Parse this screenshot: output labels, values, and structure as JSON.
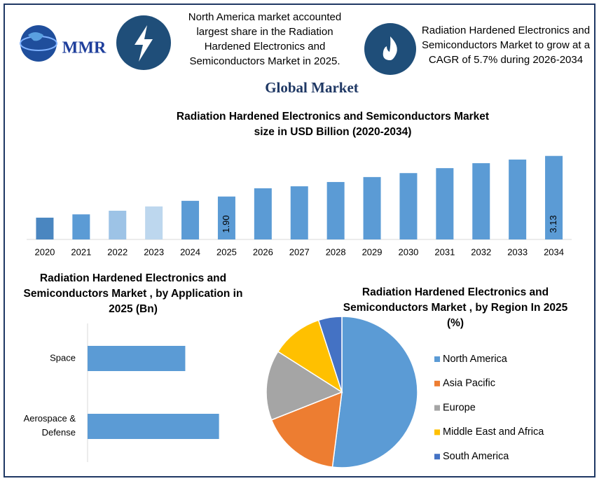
{
  "header": {
    "note_left": "North America market accounted largest share in the Radiation Hardened Electronics and Semiconductors   Market in 2025.",
    "note_right": "Radiation Hardened Electronics and Semiconductors Market to grow at a CAGR of 5.7% during 2026-2034",
    "logo": "MMR",
    "title": "Global Market"
  },
  "chart_data": [
    {
      "type": "bar",
      "title": "Radiation Hardened Electronics and Semiconductors Market size in USD Billion (2020-2034)",
      "categories": [
        "2020",
        "2021",
        "2022",
        "2023",
        "2024",
        "2025",
        "2026",
        "2027",
        "2028",
        "2029",
        "2030",
        "2031",
        "2032",
        "2033",
        "2034"
      ],
      "values": [
        1.26,
        1.36,
        1.47,
        1.6,
        1.77,
        1.9,
        2.15,
        2.21,
        2.34,
        2.49,
        2.61,
        2.76,
        2.91,
        3.02,
        3.13
      ],
      "value_labels": [
        null,
        null,
        null,
        null,
        null,
        "1.90",
        null,
        null,
        null,
        null,
        null,
        null,
        null,
        null,
        "3.13"
      ],
      "colors": [
        "#4a86c0",
        "#5b9bd5",
        "#9dc3e6",
        "#bdd7ee",
        "#5b9bd5",
        "#5b9bd5",
        "#5b9bd5",
        "#5b9bd5",
        "#5b9bd5",
        "#5b9bd5",
        "#5b9bd5",
        "#5b9bd5",
        "#5b9bd5",
        "#5b9bd5",
        "#5b9bd5"
      ],
      "ylim": [
        0.6,
        3.2
      ]
    },
    {
      "type": "hbar",
      "title": "Radiation Hardened Electronics and Semiconductors Market , by Application in 2025 (Bn)",
      "categories": [
        "Space",
        "Aerospace & Defense"
      ],
      "values": [
        0.81,
        1.09
      ],
      "color": "#5b9bd5",
      "xlim": [
        0,
        1.4
      ]
    },
    {
      "type": "pie",
      "title": "Radiation Hardened Electronics and Semiconductors Market , by Region In 2025 (%)",
      "categories": [
        "North America",
        "Asia Pacific",
        "Europe",
        "Middle East and Africa",
        "South America"
      ],
      "values": [
        52,
        17,
        15,
        11,
        5
      ],
      "colors": [
        "#5b9bd5",
        "#ed7d31",
        "#a5a5a5",
        "#ffc000",
        "#4472c4"
      ],
      "legend": "right"
    }
  ]
}
